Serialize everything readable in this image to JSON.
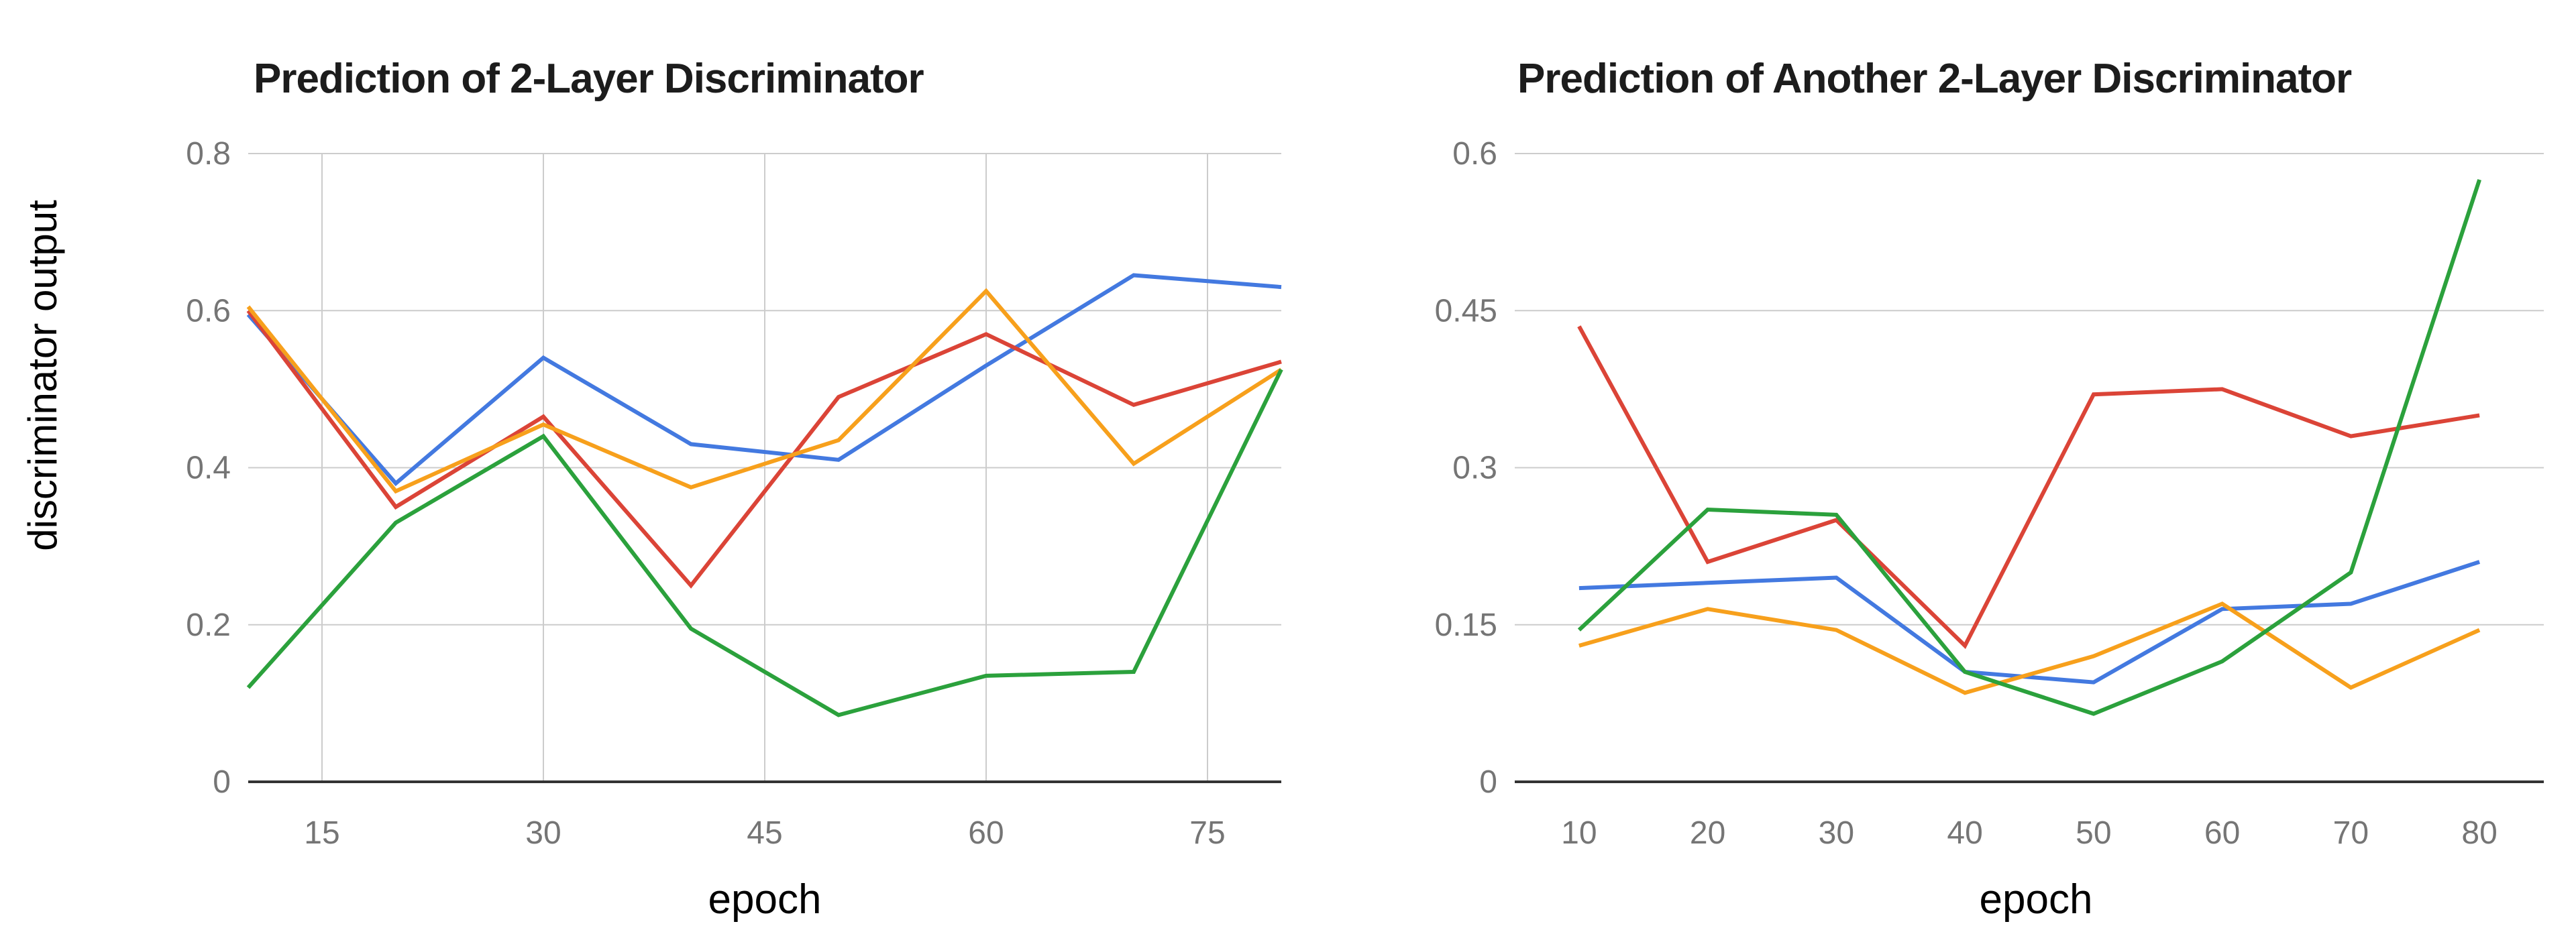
{
  "figure": {
    "background": "#ffffff",
    "y_axis_label": "discriminator output",
    "gridline_color": "#cccccc",
    "axis_color": "#333333",
    "tick_label_color": "#757575",
    "title_color": "#1c1c1c"
  },
  "chart_data": [
    {
      "type": "line",
      "title": "Prediction of 2-Layer Discriminator",
      "xlabel": "epoch",
      "ylabel": "discriminator output",
      "legend_position": "none",
      "x": [
        10,
        20,
        30,
        40,
        50,
        60,
        70,
        80
      ],
      "x_tick_values": [
        15,
        30,
        45,
        60,
        75
      ],
      "x_tick_labels": [
        "15",
        "30",
        "45",
        "60",
        "75"
      ],
      "y_tick_values": [
        0,
        0.2,
        0.4,
        0.6,
        0.8
      ],
      "y_tick_labels": [
        "0",
        "0.2",
        "0.4",
        "0.6",
        "0.8"
      ],
      "xlim": [
        10,
        80
      ],
      "ylim": [
        0,
        0.8
      ],
      "grid": {
        "horizontal": true,
        "vertical": true
      },
      "series": [
        {
          "name": "series-blue",
          "color": "#4379E0",
          "values": [
            0.595,
            0.38,
            0.54,
            0.43,
            0.41,
            0.53,
            0.645,
            0.63
          ]
        },
        {
          "name": "series-red",
          "color": "#DB4437",
          "values": [
            0.6,
            0.35,
            0.465,
            0.25,
            0.49,
            0.57,
            0.48,
            0.535
          ]
        },
        {
          "name": "series-orange",
          "color": "#F7A01C",
          "values": [
            0.605,
            0.37,
            0.455,
            0.375,
            0.435,
            0.625,
            0.405,
            0.525
          ]
        },
        {
          "name": "series-green",
          "color": "#2BA13C",
          "values": [
            0.12,
            0.33,
            0.44,
            0.195,
            0.085,
            0.135,
            0.14,
            0.525
          ]
        }
      ]
    },
    {
      "type": "line",
      "title": "Prediction of Another 2-Layer Discriminator",
      "xlabel": "epoch",
      "legend_position": "none",
      "x": [
        10,
        20,
        30,
        40,
        50,
        60,
        70,
        80
      ],
      "x_tick_values": [
        10,
        20,
        30,
        40,
        50,
        60,
        70,
        80
      ],
      "x_tick_labels": [
        "10",
        "20",
        "30",
        "40",
        "50",
        "60",
        "70",
        "80"
      ],
      "y_tick_values": [
        0,
        0.15,
        0.3,
        0.45,
        0.6
      ],
      "y_tick_labels": [
        "0",
        "0.15",
        "0.3",
        "0.45",
        "0.6"
      ],
      "xlim": [
        5,
        85
      ],
      "ylim": [
        0,
        0.6
      ],
      "grid": {
        "horizontal": true,
        "vertical": false
      },
      "series": [
        {
          "name": "series-blue",
          "color": "#4379E0",
          "values": [
            0.185,
            0.19,
            0.195,
            0.105,
            0.095,
            0.165,
            0.17,
            0.21
          ]
        },
        {
          "name": "series-red",
          "color": "#DB4437",
          "values": [
            0.435,
            0.21,
            0.25,
            0.13,
            0.37,
            0.375,
            0.33,
            0.35
          ]
        },
        {
          "name": "series-orange",
          "color": "#F7A01C",
          "values": [
            0.13,
            0.165,
            0.145,
            0.085,
            0.12,
            0.17,
            0.09,
            0.145
          ]
        },
        {
          "name": "series-green",
          "color": "#2BA13C",
          "values": [
            0.145,
            0.26,
            0.255,
            0.105,
            0.065,
            0.115,
            0.2,
            0.575
          ]
        }
      ]
    }
  ]
}
